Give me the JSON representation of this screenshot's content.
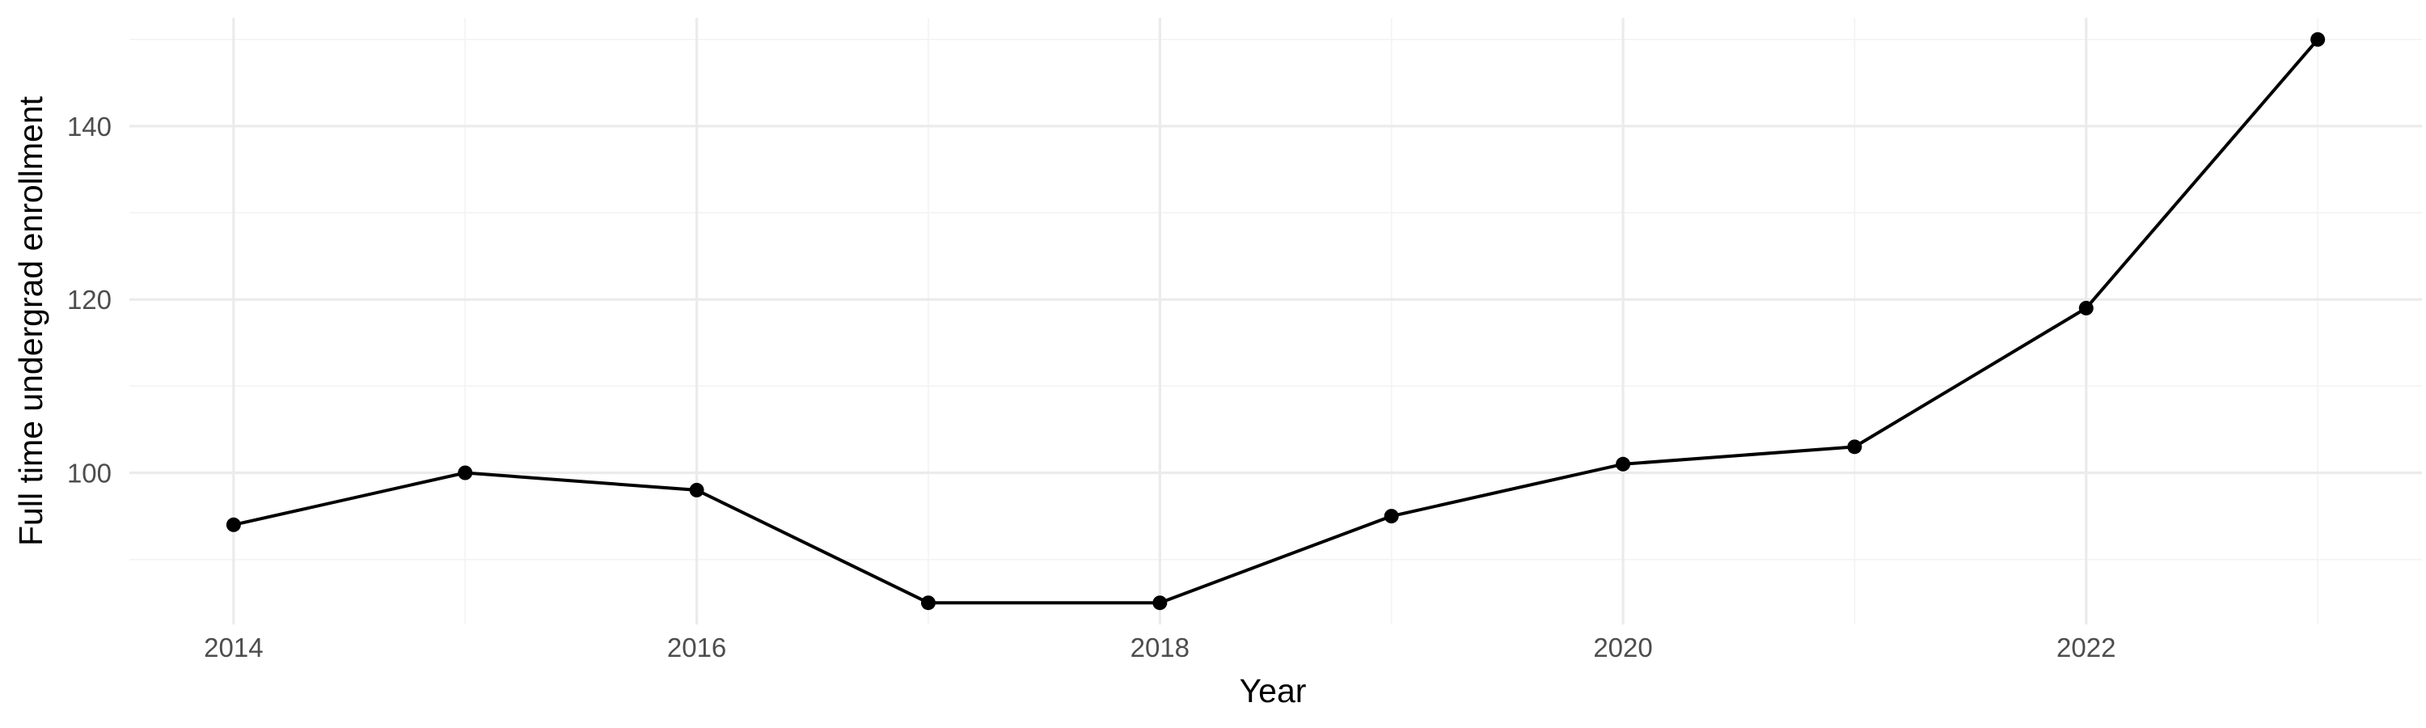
{
  "chart_data": {
    "type": "line",
    "title": "",
    "xlabel": "Year",
    "ylabel": "Full time undergrad enrollment",
    "x": [
      2014,
      2015,
      2016,
      2017,
      2018,
      2019,
      2020,
      2021,
      2022,
      2023
    ],
    "values": [
      94,
      100,
      98,
      85,
      85,
      95,
      101,
      103,
      119,
      150
    ],
    "xlim": [
      2013.55,
      2023.45
    ],
    "ylim": [
      82.5,
      152.5
    ],
    "x_ticks": [
      2014,
      2016,
      2018,
      2020,
      2022
    ],
    "x_minor_ticks": [
      2015,
      2017,
      2019,
      2021,
      2023
    ],
    "y_ticks": [
      100,
      120,
      140
    ],
    "y_minor_ticks": [
      90,
      110,
      130,
      150
    ],
    "grid": true,
    "legend": "none",
    "colors": {
      "line": "#000000",
      "points": "#000000",
      "grid_major": "#ebebeb",
      "grid_minor": "#f3f3f3",
      "tick_labels": "#4d4d4d",
      "background": "#ffffff"
    }
  }
}
